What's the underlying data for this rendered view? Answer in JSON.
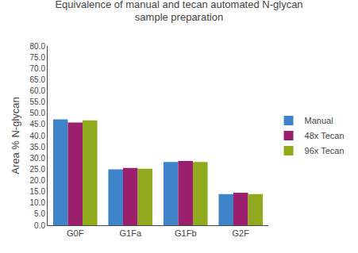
{
  "chart_data": {
    "type": "bar",
    "title": "Equivalence of manual and tecan automated N-glycan\nsample preparation",
    "ylabel": "Area % N-glycan",
    "categories": [
      "G0F",
      "G1Fa",
      "G1Fb",
      "G2F"
    ],
    "series": [
      {
        "name": "Manual",
        "color": "#3d85c8",
        "values": [
          47.3,
          25.0,
          28.2,
          13.9
        ]
      },
      {
        "name": "48x Tecan",
        "color": "#9c1f6e",
        "values": [
          45.8,
          25.6,
          28.7,
          14.5
        ]
      },
      {
        "name": "96x Tecan",
        "color": "#8faa1c",
        "values": [
          46.8,
          25.2,
          28.2,
          13.9
        ]
      }
    ],
    "ylim": [
      0.0,
      80.0
    ],
    "yticks": [
      {
        "value": 0.0,
        "label": "0.0"
      },
      {
        "value": 5.0,
        "label": "5.0"
      },
      {
        "value": 10.0,
        "label": "10.0"
      },
      {
        "value": 15.0,
        "label": "15.0"
      },
      {
        "value": 20.0,
        "label": "20.0"
      },
      {
        "value": 25.0,
        "label": "25.0"
      },
      {
        "value": 30.0,
        "label": "30.0"
      },
      {
        "value": 35.0,
        "label": "35.0"
      },
      {
        "value": 40.0,
        "label": "40.0"
      },
      {
        "value": 45.0,
        "label": "45.0"
      },
      {
        "value": 50.0,
        "label": "50.0"
      },
      {
        "value": 55.0,
        "label": "55.0"
      },
      {
        "value": 60.0,
        "label": "60.0"
      },
      {
        "value": 65.0,
        "label": "65.0"
      },
      {
        "value": 70.0,
        "label": "70.0"
      },
      {
        "value": 75.0,
        "label": "75.0"
      },
      {
        "value": 80.0,
        "label": "80.0"
      }
    ],
    "grid": false,
    "legend": "right"
  }
}
